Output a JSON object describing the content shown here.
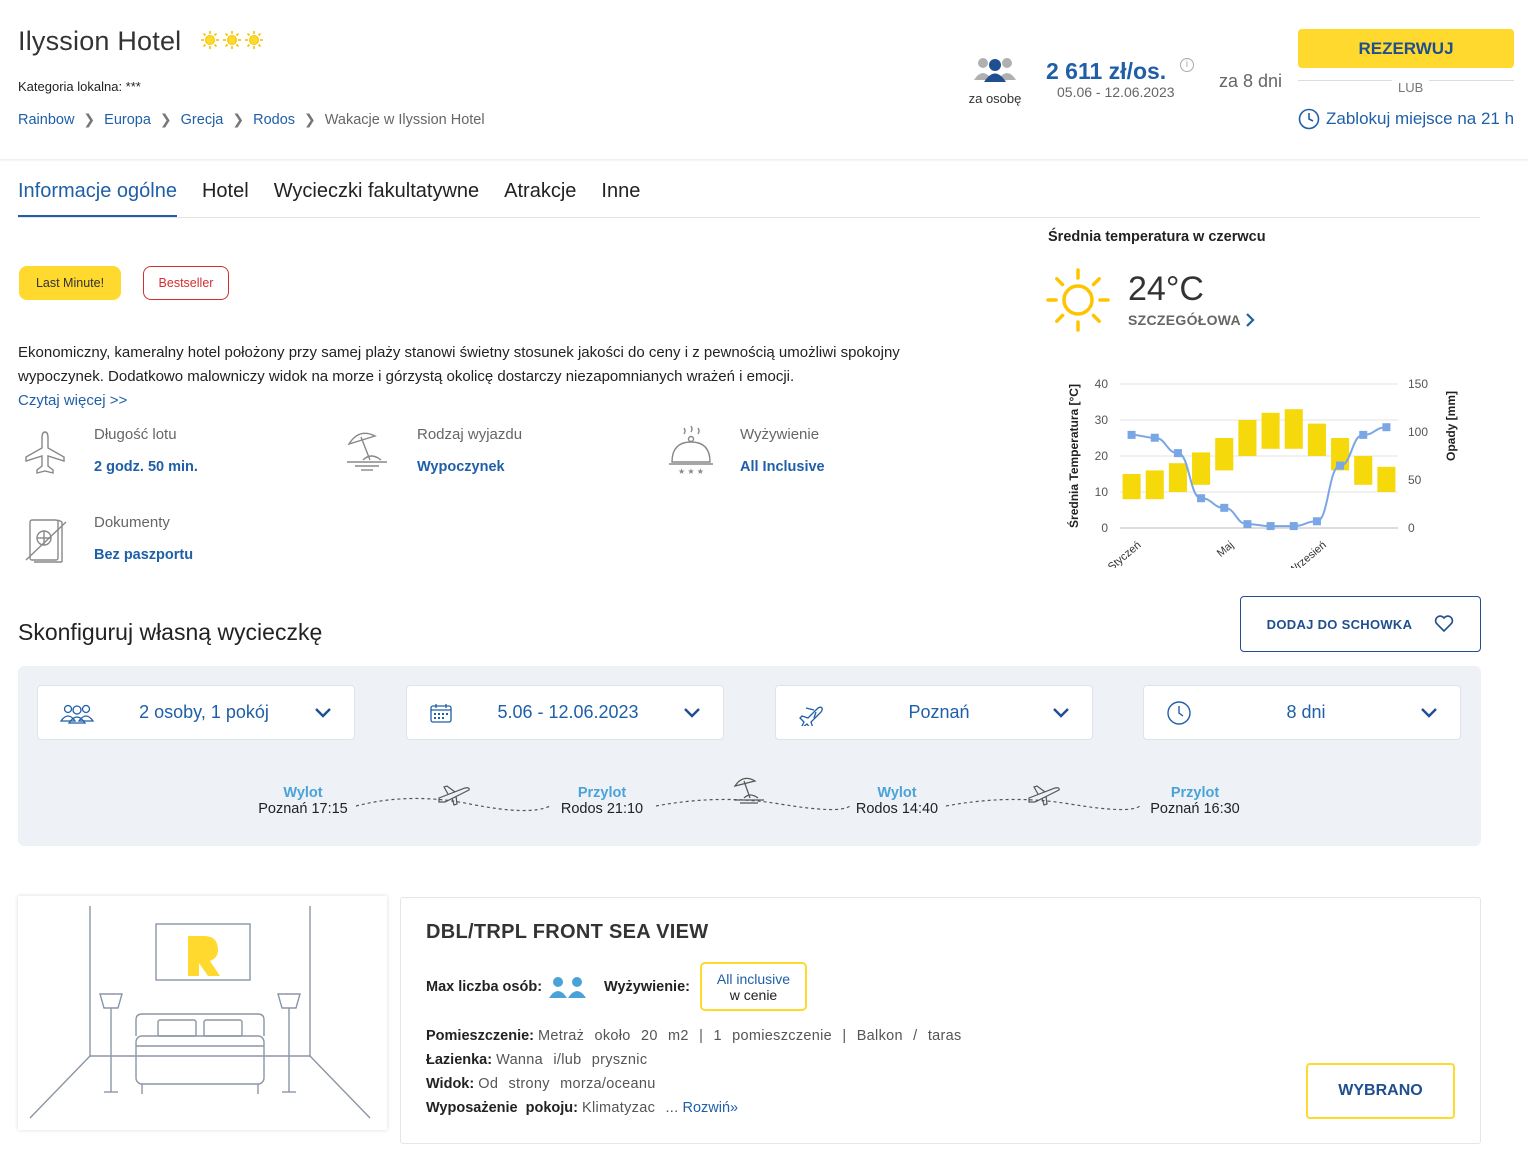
{
  "hotel": {
    "name": "Ilyssion Hotel",
    "stars": 3,
    "local_category": "Kategoria lokalna: ***"
  },
  "breadcrumb": [
    "Rainbow",
    "Europa",
    "Grecja",
    "Rodos",
    "Wakacje w Ilyssion Hotel"
  ],
  "pricing": {
    "per_person_label": "za osobę",
    "price": "2 611 zł/os.",
    "dates": "05.06 - 12.06.2023",
    "duration": "za 8 dni",
    "reserve_button": "REZERWUJ",
    "or_label": "LUB",
    "lock_label": "Zablokuj miejsce na 21 h"
  },
  "tabs": [
    {
      "label": "Informacje ogólne",
      "active": true
    },
    {
      "label": "Hotel",
      "active": false
    },
    {
      "label": "Wycieczki fakultatywne",
      "active": false
    },
    {
      "label": "Atrakcje",
      "active": false
    },
    {
      "label": "Inne",
      "active": false
    }
  ],
  "badges": {
    "last_minute": "Last Minute!",
    "bestseller": "Bestseller"
  },
  "description": "Ekonomiczny, kameralny hotel położony przy samej plaży stanowi świetny stosunek jakości do ceny i z pewnością umożliwi spokojny wypoczynek. Dodatkowo malowniczy widok na morze i górzystą okolicę dostarczy niezapomnianych wrażeń i emocji.",
  "read_more": "Czytaj więcej >>",
  "features": [
    {
      "icon": "airplane-icon",
      "title": "Długość lotu",
      "value": "2 godz. 50 min."
    },
    {
      "icon": "beach-umbrella-icon",
      "title": "Rodzaj wyjazdu",
      "value": "Wypoczynek"
    },
    {
      "icon": "food-cloche-icon",
      "title": "Wyżywienie",
      "value": "All Inclusive"
    },
    {
      "icon": "passport-icon",
      "title": "Dokumenty",
      "value": "Bez paszportu"
    }
  ],
  "weather": {
    "title": "Średnia temperatura w czerwcu",
    "temperature": "24°C",
    "detail_link": "SZCZEGÓŁOWA",
    "icon": "sun-icon"
  },
  "chart_data": {
    "type": "bar",
    "ylabel": "Średnia Temperatura [°C]",
    "y2label": "Opady [mm]",
    "ylim": [
      0,
      40
    ],
    "y2lim": [
      0,
      150
    ],
    "yticks": [
      0,
      10,
      20,
      30,
      40
    ],
    "y2ticks": [
      0,
      50,
      100,
      150
    ],
    "xtick_labels": [
      "Styczeń",
      "Maj",
      "Wrzesień"
    ],
    "temperature_ranges": [
      {
        "low": 8,
        "high": 15
      },
      {
        "low": 8,
        "high": 16
      },
      {
        "low": 10,
        "high": 18
      },
      {
        "low": 12,
        "high": 21
      },
      {
        "low": 16,
        "high": 25
      },
      {
        "low": 20,
        "high": 30
      },
      {
        "low": 22,
        "high": 32
      },
      {
        "low": 22,
        "high": 33
      },
      {
        "low": 20,
        "high": 29
      },
      {
        "low": 16,
        "high": 25
      },
      {
        "low": 12,
        "high": 20
      },
      {
        "low": 10,
        "high": 17
      }
    ],
    "precipitation": [
      97,
      94,
      78,
      31,
      21,
      4,
      2,
      2,
      7,
      65,
      97,
      105
    ]
  },
  "configure": {
    "title": "Skonfiguruj własną wycieczkę",
    "save_button": "DODAJ DO SCHOWKA",
    "selectors": [
      {
        "icon": "people-icon",
        "value": "2 osoby, 1 pokój"
      },
      {
        "icon": "calendar-icon",
        "value": "5.06 - 12.06.2023"
      },
      {
        "icon": "airplane-icon",
        "value": "Poznań"
      },
      {
        "icon": "clock-icon",
        "value": "8 dni"
      }
    ],
    "flights": [
      {
        "type": "Wylot",
        "value": "Poznań 17:15"
      },
      {
        "type": "Przylot",
        "value": "Rodos 21:10"
      },
      {
        "type": "Wylot",
        "value": "Rodos 14:40"
      },
      {
        "type": "Przylot",
        "value": "Poznań 16:30"
      }
    ]
  },
  "room": {
    "title": "DBL/TRPL FRONT SEA VIEW",
    "max_persons_label": "Max liczba osób:",
    "board_label": "Wyżywienie:",
    "board_value_1": "All inclusive",
    "board_value_2": "w cenie",
    "rows": [
      {
        "label": "Pomieszczenie:",
        "value": "Metraż około 20 m2 | 1 pomieszczenie | Balkon / taras"
      },
      {
        "label": "Łazienka:",
        "value": "Wanna i/lub prysznic"
      },
      {
        "label": "Widok:",
        "value": "Od strony morza/oceanu"
      },
      {
        "label": "Wyposażenie pokoju:",
        "value": "Klimatyzac ...",
        "more": "Rozwiń»"
      }
    ],
    "selected_button": "WYBRANO"
  }
}
